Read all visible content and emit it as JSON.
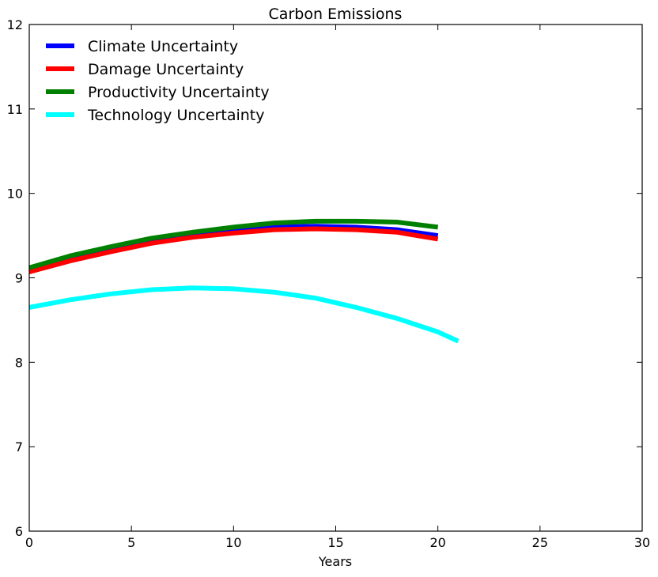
{
  "chart_data": {
    "type": "line",
    "title": "Carbon Emissions",
    "xlabel": "Years",
    "ylabel": "",
    "xlim": [
      0,
      30
    ],
    "ylim": [
      6,
      12
    ],
    "xticks": [
      0,
      5,
      10,
      15,
      20,
      25,
      30
    ],
    "yticks": [
      6,
      7,
      8,
      9,
      10,
      11,
      12
    ],
    "grid": false,
    "legend_position": "upper-left",
    "series": [
      {
        "name": "Climate Uncertainty",
        "color": "#0000ff",
        "x": [
          0,
          2,
          4,
          6,
          8,
          10,
          12,
          14,
          16,
          18,
          20
        ],
        "y": [
          9.1,
          9.23,
          9.34,
          9.44,
          9.51,
          9.56,
          9.6,
          9.61,
          9.6,
          9.57,
          9.5
        ]
      },
      {
        "name": "Damage Uncertainty",
        "color": "#ff0000",
        "x": [
          0,
          2,
          4,
          6,
          8,
          10,
          12,
          14,
          16,
          18,
          20
        ],
        "y": [
          9.07,
          9.2,
          9.31,
          9.41,
          9.48,
          9.53,
          9.57,
          9.58,
          9.57,
          9.54,
          9.46
        ]
      },
      {
        "name": "Productivity Uncertainty",
        "color": "#008000",
        "x": [
          0,
          2,
          4,
          6,
          8,
          10,
          12,
          14,
          16,
          18,
          20
        ],
        "y": [
          9.12,
          9.26,
          9.37,
          9.47,
          9.54,
          9.6,
          9.65,
          9.67,
          9.67,
          9.66,
          9.6
        ]
      },
      {
        "name": "Technology Uncertainty",
        "color": "#00ffff",
        "x": [
          0,
          2,
          4,
          6,
          8,
          10,
          12,
          14,
          16,
          18,
          20,
          21
        ],
        "y": [
          8.65,
          8.74,
          8.81,
          8.86,
          8.88,
          8.87,
          8.83,
          8.76,
          8.65,
          8.52,
          8.36,
          8.25
        ]
      }
    ]
  }
}
